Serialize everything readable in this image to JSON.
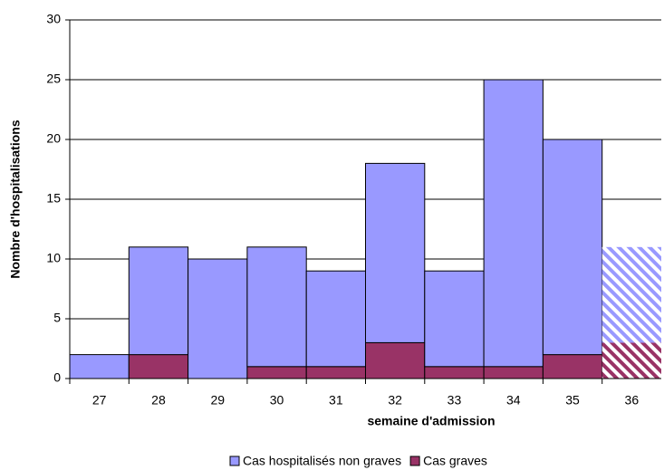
{
  "chart_data": {
    "type": "stacked_bar",
    "x_label": "semaine d'admission",
    "y_label": "Nombre d'hospitalisations",
    "categories": [
      "27",
      "28",
      "29",
      "30",
      "31",
      "32",
      "33",
      "34",
      "35",
      "36"
    ],
    "series": [
      {
        "name": "Cas hospitalisés non graves",
        "color": "#9999ff",
        "values": [
          2,
          9,
          10,
          10,
          8,
          15,
          8,
          24,
          18,
          8
        ]
      },
      {
        "name": "Cas graves",
        "color": "#993366",
        "values": [
          0,
          2,
          0,
          1,
          1,
          3,
          1,
          1,
          2,
          3
        ]
      }
    ],
    "stack_order": [
      1,
      0
    ],
    "hatched_index": 9,
    "ylim": [
      0,
      30
    ],
    "yticks": [
      0,
      5,
      10,
      15,
      20,
      25,
      30
    ],
    "grid": true
  }
}
